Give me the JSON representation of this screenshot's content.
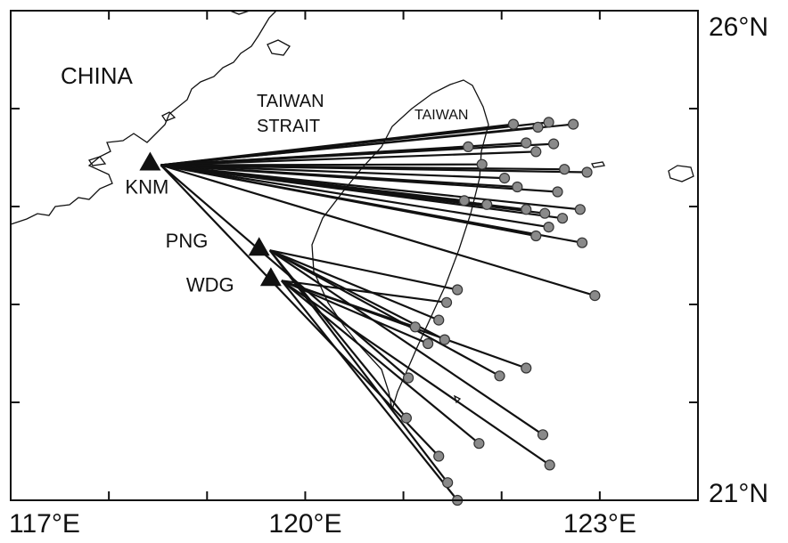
{
  "map": {
    "xlim": [
      117,
      124
    ],
    "ylim": [
      21,
      26
    ],
    "lon_ticks": [
      {
        "value": 117,
        "label": "117°E"
      },
      118,
      119,
      {
        "value": 120,
        "label": "120°E"
      },
      121,
      122,
      {
        "value": 123,
        "label": "123°E"
      }
    ],
    "lat_ticks": [
      {
        "value": 21,
        "label": "21°N"
      },
      22,
      23,
      24,
      25,
      {
        "value": 26,
        "label": "26°N"
      }
    ],
    "region_labels": [
      "CHINA",
      "TAIWAN",
      "STRAIT",
      "TAIWAN"
    ],
    "stations": [
      {
        "name": "KNM",
        "lon": 118.42,
        "lat": 24.45
      },
      {
        "name": "PNG",
        "lon": 119.53,
        "lat": 23.58
      },
      {
        "name": "WDG",
        "lon": 119.65,
        "lat": 23.27
      }
    ],
    "events": [
      {
        "lon": 122.12,
        "lat": 24.84,
        "station": 0
      },
      {
        "lon": 122.37,
        "lat": 24.81,
        "station": 0
      },
      {
        "lon": 122.48,
        "lat": 24.86,
        "station": 0
      },
      {
        "lon": 122.73,
        "lat": 24.84,
        "station": 0
      },
      {
        "lon": 121.66,
        "lat": 24.61,
        "station": 0
      },
      {
        "lon": 122.25,
        "lat": 24.65,
        "station": 0
      },
      {
        "lon": 122.53,
        "lat": 24.64,
        "station": 0
      },
      {
        "lon": 122.35,
        "lat": 24.56,
        "station": 0
      },
      {
        "lon": 122.64,
        "lat": 24.38,
        "station": 0
      },
      {
        "lon": 122.87,
        "lat": 24.35,
        "station": 0
      },
      {
        "lon": 121.8,
        "lat": 24.43,
        "station": 0
      },
      {
        "lon": 122.03,
        "lat": 24.29,
        "station": 0
      },
      {
        "lon": 122.16,
        "lat": 24.2,
        "station": 0
      },
      {
        "lon": 122.57,
        "lat": 24.15,
        "station": 0
      },
      {
        "lon": 121.62,
        "lat": 24.06,
        "station": 0
      },
      {
        "lon": 121.85,
        "lat": 24.02,
        "station": 0
      },
      {
        "lon": 122.25,
        "lat": 23.97,
        "station": 0
      },
      {
        "lon": 122.44,
        "lat": 23.93,
        "station": 0
      },
      {
        "lon": 122.62,
        "lat": 23.88,
        "station": 0
      },
      {
        "lon": 122.8,
        "lat": 23.97,
        "station": 0
      },
      {
        "lon": 122.48,
        "lat": 23.79,
        "station": 0
      },
      {
        "lon": 122.35,
        "lat": 23.7,
        "station": 0
      },
      {
        "lon": 122.82,
        "lat": 23.63,
        "station": 0
      },
      {
        "lon": 122.95,
        "lat": 23.09,
        "station": 0
      },
      {
        "lon": 121.55,
        "lat": 23.15,
        "station": 1
      },
      {
        "lon": 121.44,
        "lat": 23.02,
        "station": 2
      },
      {
        "lon": 121.36,
        "lat": 22.84,
        "station": 1
      },
      {
        "lon": 121.12,
        "lat": 22.77,
        "station": 2
      },
      {
        "lon": 121.42,
        "lat": 22.64,
        "station": 1
      },
      {
        "lon": 121.25,
        "lat": 22.6,
        "station": 2
      },
      {
        "lon": 121.98,
        "lat": 22.27,
        "station": 1
      },
      {
        "lon": 122.25,
        "lat": 22.35,
        "station": 2
      },
      {
        "lon": 121.05,
        "lat": 22.25,
        "station": 0
      },
      {
        "lon": 121.03,
        "lat": 21.84,
        "station": 1
      },
      {
        "lon": 121.77,
        "lat": 21.58,
        "station": 2
      },
      {
        "lon": 122.42,
        "lat": 21.67,
        "station": 1
      },
      {
        "lon": 122.49,
        "lat": 21.36,
        "station": 2
      },
      {
        "lon": 121.36,
        "lat": 21.45,
        "station": 0
      },
      {
        "lon": 121.45,
        "lat": 21.18,
        "station": 1
      },
      {
        "lon": 121.55,
        "lat": 21.0,
        "station": 2
      }
    ]
  }
}
